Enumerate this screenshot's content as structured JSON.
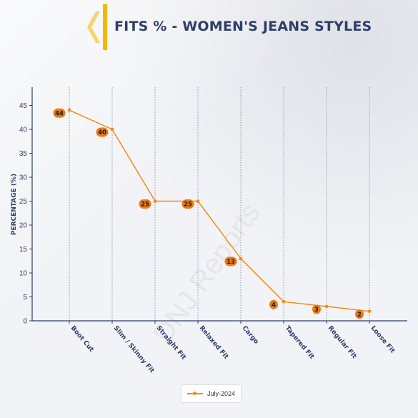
{
  "header": {
    "title": "FITS % - WOMEN'S JEANS STYLES"
  },
  "colors": {
    "line": "#f08c1e",
    "label_bg": "#ea7a12",
    "axis": "#2e3e67",
    "logo_yellow": "#f7b500",
    "grid": "#8a96b8"
  },
  "watermark": "DNJ Reports",
  "chart_data": {
    "type": "line",
    "categories": [
      "Boot Cut",
      "Slim / Skinny Fit",
      "Straight Fit",
      "Relaxed Fit",
      "Cargo",
      "Tapered Fit",
      "Regular Fit",
      "Loose Fit"
    ],
    "series": [
      {
        "name": "July-2024",
        "values": [
          44,
          40,
          25,
          25,
          13,
          4,
          3,
          2
        ]
      }
    ],
    "xlabel": "",
    "ylabel": "PERCENTAGE (%)",
    "ylim": [
      0,
      48
    ],
    "yticks": [
      0,
      5,
      10,
      15,
      20,
      25,
      30,
      35,
      40,
      45
    ],
    "grid": "vertical-dotted",
    "legend_position": "bottom-center"
  }
}
